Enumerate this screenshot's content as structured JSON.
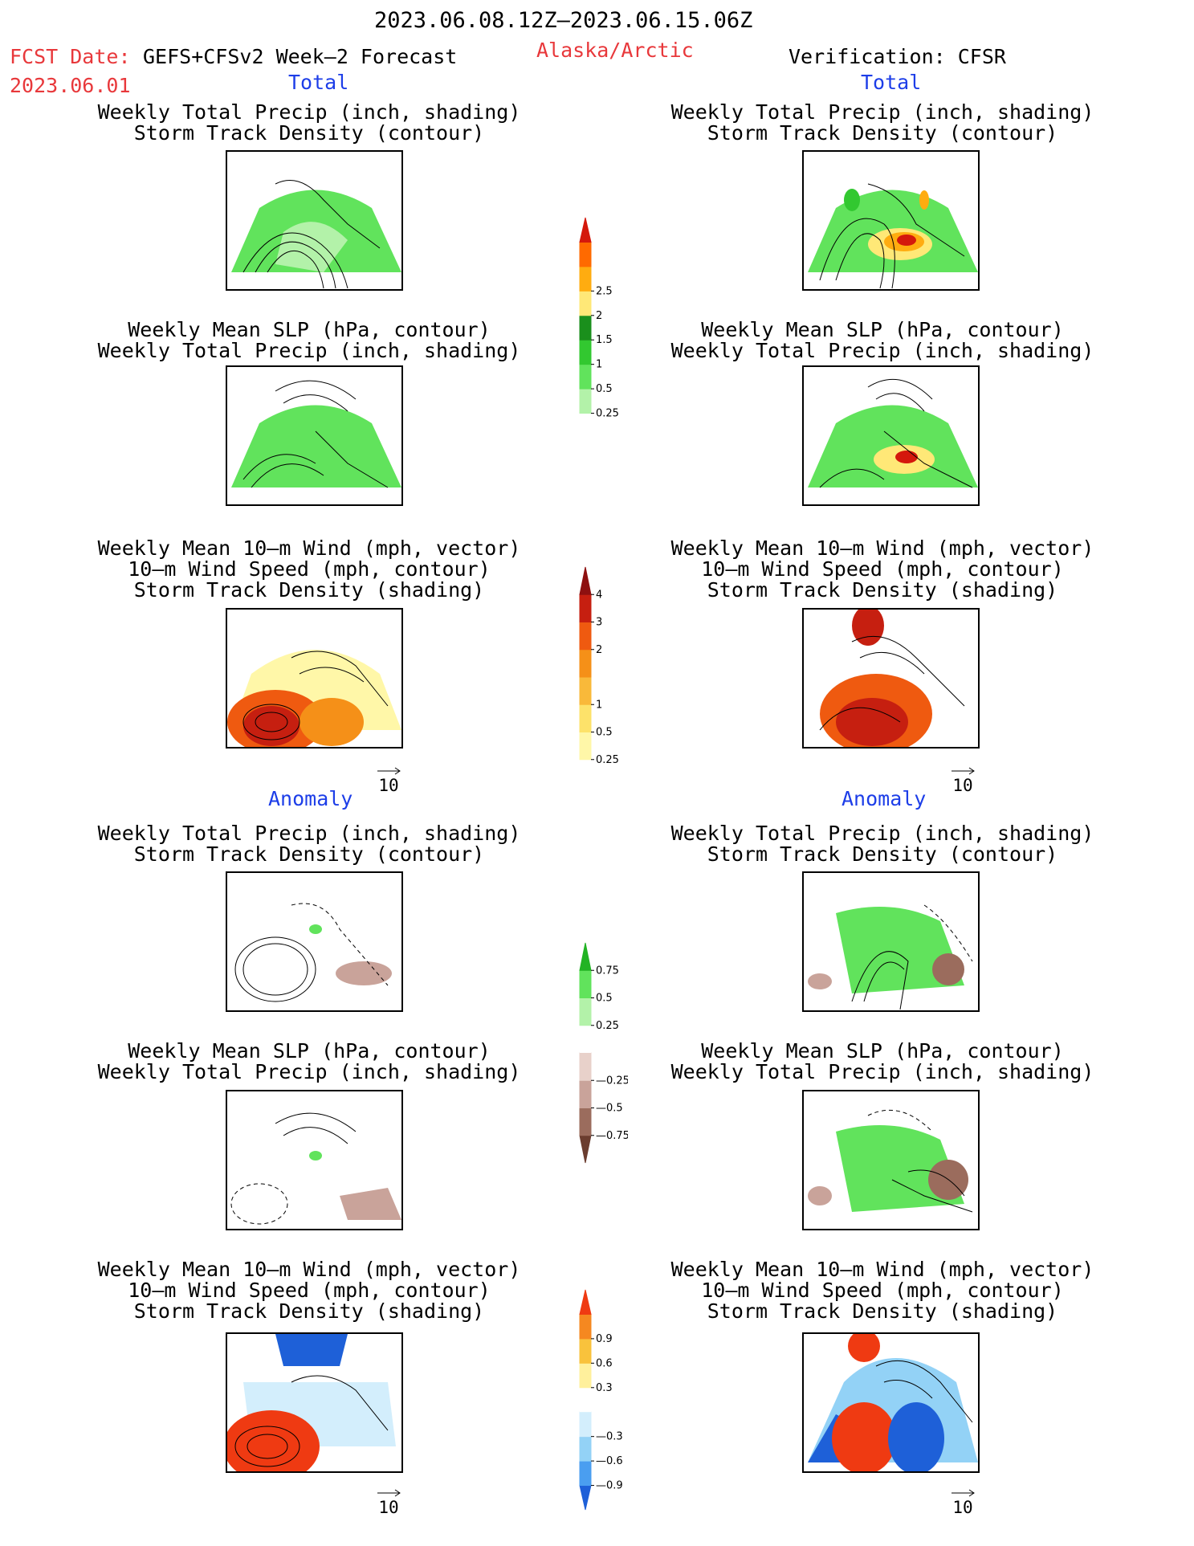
{
  "header": {
    "date_range": "2023.06.08.12Z—2023.06.15.06Z",
    "fcst_label": "FCST Date:",
    "fcst_value": "GEFS+CFSv2 Week—2 Forecast",
    "fcst_date": "2023.06.01",
    "region": "Alaska/Arctic",
    "verification": "Verification: CFSR"
  },
  "sections": {
    "total": "Total",
    "anomaly": "Anomaly"
  },
  "titles": {
    "precip_track": "Weekly Total Precip (inch, shading)\nStorm Track Density (contour)",
    "slp_precip": "Weekly Mean SLP (hPa, contour)\nWeekly Total Precip (inch, shading)",
    "wind_track": "Weekly Mean 10—m Wind (mph, vector)\n10—m Wind Speed (mph, contour)\nStorm Track Density (shading)"
  },
  "vector_ref": "10",
  "colors": {
    "precip_total": [
      "#ffffff",
      "#b3f2a9",
      "#61e35c",
      "#32c830",
      "#1a8f1c",
      "#ffe877",
      "#ffac10",
      "#ff6a00",
      "#d4180c"
    ],
    "track_total": [
      "#ffffff",
      "#fff7a8",
      "#fde26a",
      "#f9b93a",
      "#f59018",
      "#ef5a10",
      "#c61f10",
      "#8e1010"
    ],
    "precip_anom": [
      "#6b3d2f",
      "#9b6c5d",
      "#c9a39a",
      "#e8d1ca",
      "#ffffff",
      "#b3f2a9",
      "#61e35c",
      "#22b324"
    ],
    "track_anom": [
      "#1e60d8",
      "#4a9ef0",
      "#93d2f6",
      "#d3eefc",
      "#ffffff",
      "#fff09c",
      "#f9c23c",
      "#f58820",
      "#ef3a12"
    ]
  },
  "chart_data": [
    {
      "type": "heatmap",
      "name": "total_precip_colorbar",
      "ticks": [
        "0.25",
        "0.5",
        "1",
        "1.5",
        "2",
        "2.5"
      ]
    },
    {
      "type": "heatmap",
      "name": "total_track_colorbar",
      "ticks": [
        "0.25",
        "0.5",
        "1",
        "2",
        "3",
        "4"
      ]
    },
    {
      "type": "heatmap",
      "name": "anomaly_precip_colorbar",
      "ticks": [
        "—0.75",
        "—0.5",
        "—0.25",
        "0.25",
        "0.5",
        "0.75"
      ]
    },
    {
      "type": "heatmap",
      "name": "anomaly_track_colorbar",
      "ticks": [
        "—0.9",
        "—0.6",
        "—0.3",
        "0.3",
        "0.6",
        "0.9"
      ]
    }
  ]
}
